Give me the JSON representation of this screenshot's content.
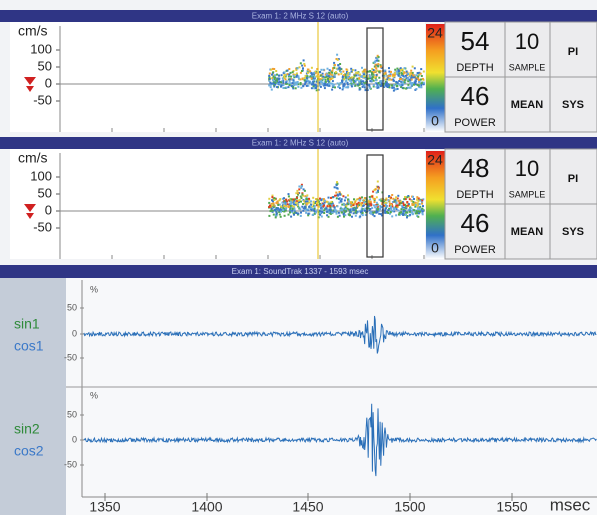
{
  "panels": [
    {
      "header": "Exam 1: 2 MHz S 12 (auto)",
      "y_unit": "cm/s",
      "y_ticks": [
        100,
        50,
        0,
        -50
      ],
      "scale_max": 24,
      "scale_min": 0,
      "depth": 54,
      "depth_label": "DEPTH",
      "sample": 10,
      "sample_label": "SAMPLE",
      "pi_label": "PI",
      "power": 46,
      "power_label": "POWER",
      "mean_label": "MEAN",
      "sys_label": "SYS"
    },
    {
      "header": "Exam 1: 2 MHz S 12 (auto)",
      "y_unit": "cm/s",
      "y_ticks": [
        100,
        50,
        0,
        -50
      ],
      "scale_max": 24,
      "scale_min": 0,
      "depth": 48,
      "depth_label": "DEPTH",
      "sample": 10,
      "sample_label": "SAMPLE",
      "pi_label": "PI",
      "power": 46,
      "power_label": "POWER",
      "mean_label": "MEAN",
      "sys_label": "SYS"
    }
  ],
  "soundtrak": {
    "header": "Exam 1: SoundTrak 1337 - 1593 msec",
    "channels": [
      {
        "sin": "sin1",
        "cos": "cos1",
        "unit": "%",
        "ticks": [
          50,
          0,
          -50
        ]
      },
      {
        "sin": "sin2",
        "cos": "cos2",
        "unit": "%",
        "ticks": [
          50,
          0,
          -50
        ]
      }
    ],
    "x_ticks": [
      1350,
      1400,
      1450,
      1500,
      1550
    ],
    "x_unit": "msec"
  }
}
